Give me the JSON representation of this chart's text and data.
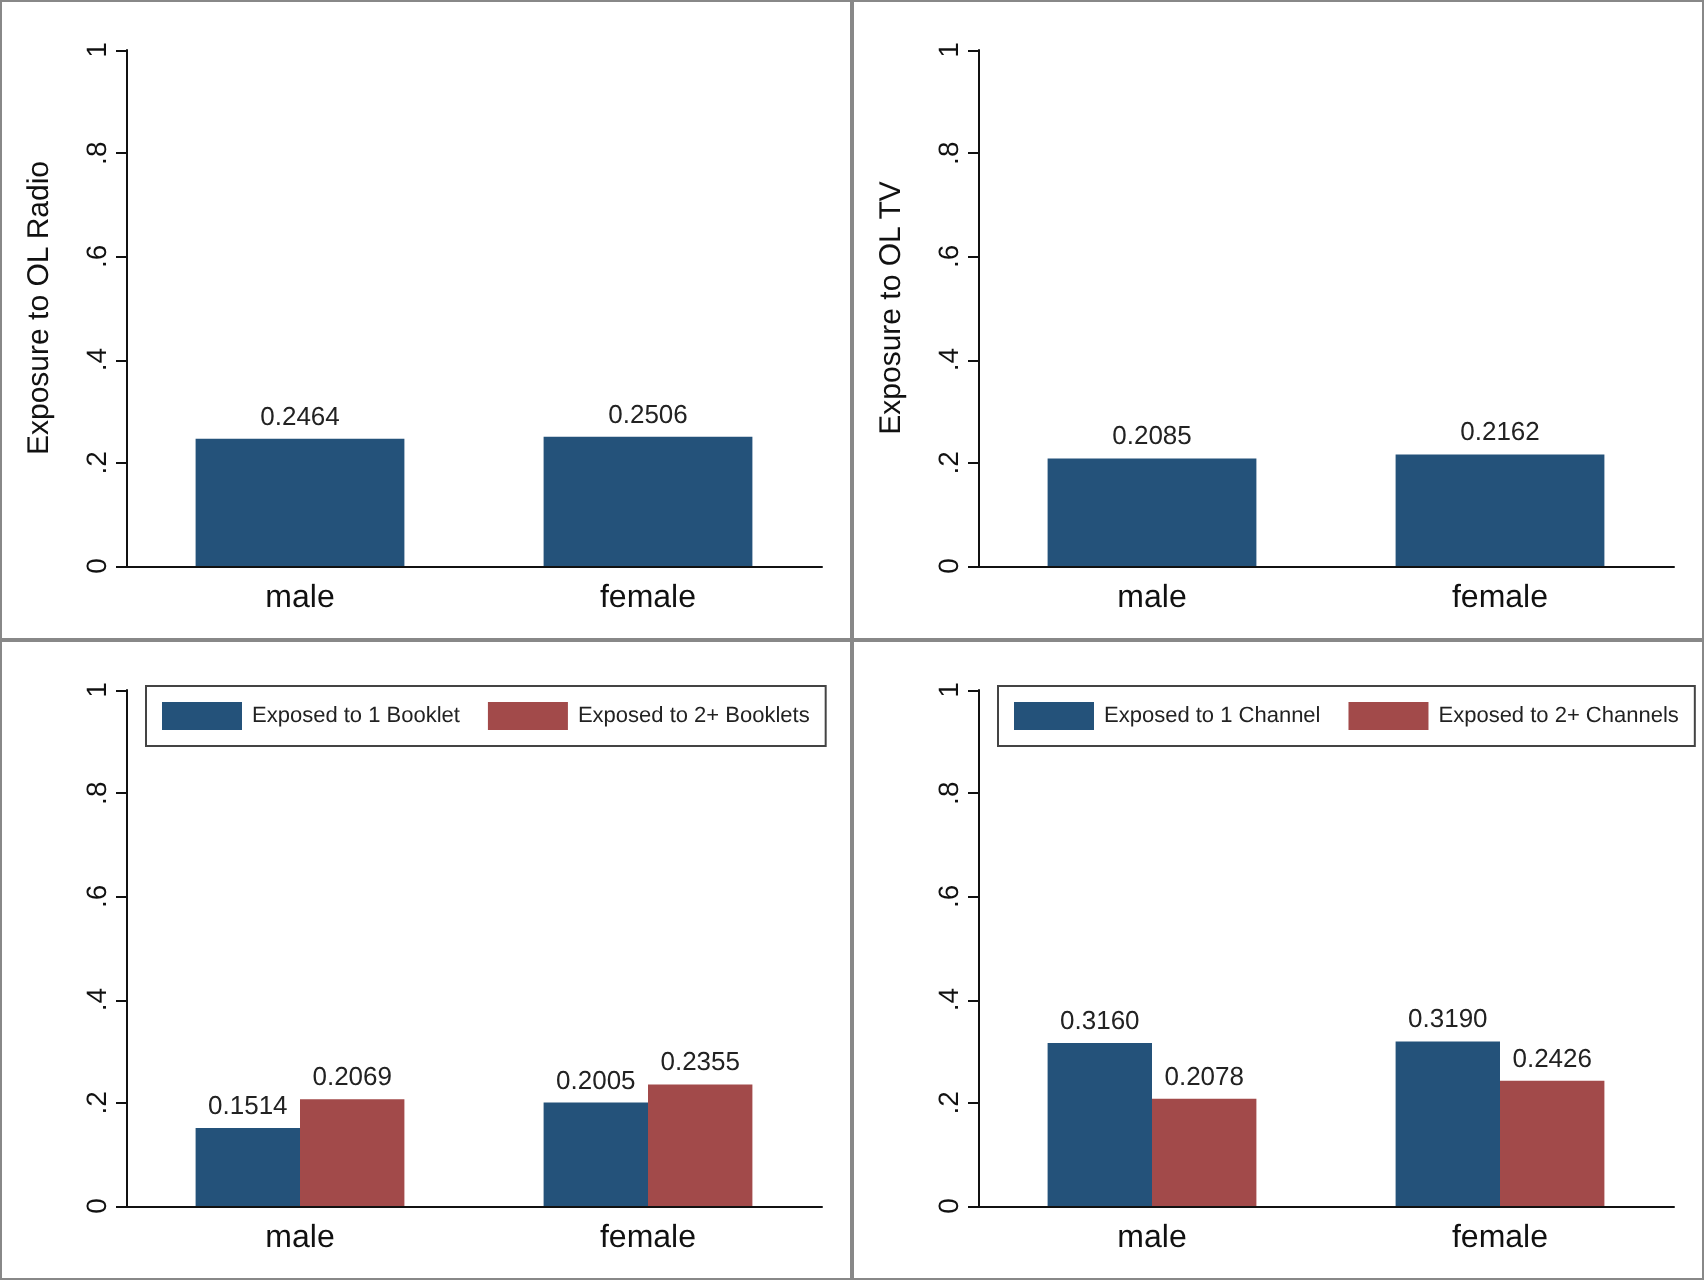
{
  "chart_data": [
    {
      "type": "bar",
      "ylabel": "Exposure to OL Radio",
      "categories": [
        "male",
        "female"
      ],
      "series": [
        {
          "color": "#24527a",
          "values": [
            0.2464,
            0.2506
          ],
          "value_labels": [
            "0.2464",
            "0.2506"
          ]
        }
      ],
      "ylim": [
        0,
        1
      ],
      "yticks": [
        {
          "value": 0,
          "label": "0"
        },
        {
          "value": 0.2,
          "label": ".2"
        },
        {
          "value": 0.4,
          "label": ".4"
        },
        {
          "value": 0.6,
          "label": ".6"
        },
        {
          "value": 0.8,
          "label": ".8"
        },
        {
          "value": 1,
          "label": "1"
        }
      ]
    },
    {
      "type": "bar",
      "ylabel": "Exposure to OL TV",
      "categories": [
        "male",
        "female"
      ],
      "series": [
        {
          "color": "#24527a",
          "values": [
            0.2085,
            0.2162
          ],
          "value_labels": [
            "0.2085",
            "0.2162"
          ]
        }
      ],
      "ylim": [
        0,
        1
      ],
      "yticks": [
        {
          "value": 0,
          "label": "0"
        },
        {
          "value": 0.2,
          "label": ".2"
        },
        {
          "value": 0.4,
          "label": ".4"
        },
        {
          "value": 0.6,
          "label": ".6"
        },
        {
          "value": 0.8,
          "label": ".8"
        },
        {
          "value": 1,
          "label": "1"
        }
      ]
    },
    {
      "type": "bar",
      "categories": [
        "male",
        "female"
      ],
      "legend": "top",
      "series": [
        {
          "name": "Exposed to 1 Booklet",
          "color": "#24527a",
          "values": [
            0.1514,
            0.2005
          ],
          "value_labels": [
            "0.1514",
            "0.2005"
          ]
        },
        {
          "name": "Exposed to 2+ Booklets",
          "color": "#a24a4a",
          "values": [
            0.2069,
            0.2355
          ],
          "value_labels": [
            "0.2069",
            "0.2355"
          ]
        }
      ],
      "ylim": [
        0,
        1
      ],
      "yticks": [
        {
          "value": 0,
          "label": "0"
        },
        {
          "value": 0.2,
          "label": ".2"
        },
        {
          "value": 0.4,
          "label": ".4"
        },
        {
          "value": 0.6,
          "label": ".6"
        },
        {
          "value": 0.8,
          "label": ".8"
        },
        {
          "value": 1,
          "label": "1"
        }
      ]
    },
    {
      "type": "bar",
      "categories": [
        "male",
        "female"
      ],
      "legend": "top",
      "series": [
        {
          "name": "Exposed to 1 Channel",
          "color": "#24527a",
          "values": [
            0.316,
            0.319
          ],
          "value_labels": [
            "0.3160",
            "0.3190"
          ]
        },
        {
          "name": "Exposed to 2+ Channels",
          "color": "#a24a4a",
          "values": [
            0.2078,
            0.2426
          ],
          "value_labels": [
            "0.2078",
            "0.2426"
          ]
        }
      ],
      "ylim": [
        0,
        1
      ],
      "yticks": [
        {
          "value": 0,
          "label": "0"
        },
        {
          "value": 0.2,
          "label": ".2"
        },
        {
          "value": 0.4,
          "label": ".4"
        },
        {
          "value": 0.6,
          "label": ".6"
        },
        {
          "value": 0.8,
          "label": ".8"
        },
        {
          "value": 1,
          "label": "1"
        }
      ]
    }
  ]
}
